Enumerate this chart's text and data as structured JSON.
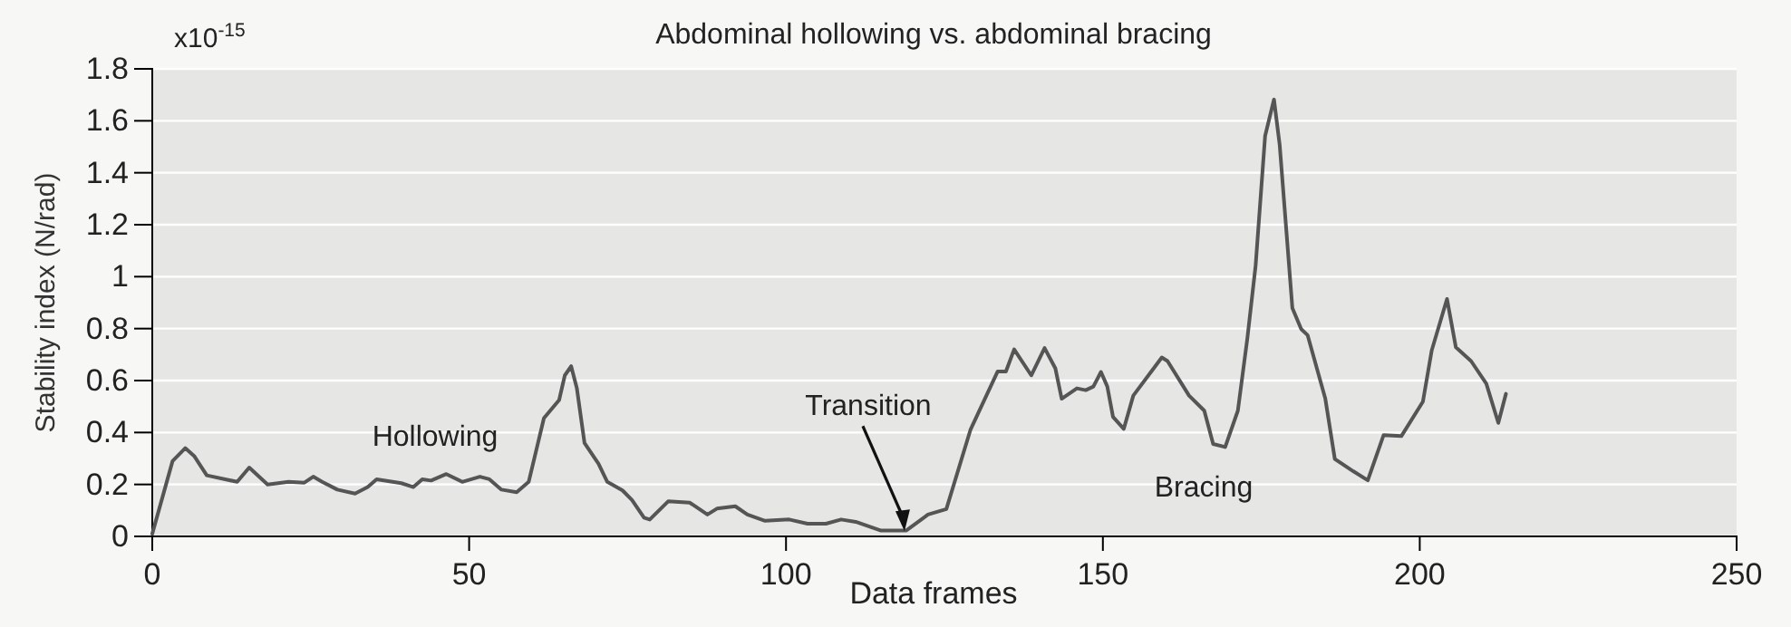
{
  "chart_data": {
    "type": "line",
    "title": "Abdominal hollowing vs. abdominal bracing",
    "xlabel": "Data frames",
    "ylabel": "Stability index (N/rad)",
    "xlim": [
      0,
      250
    ],
    "xticks": [
      0,
      50,
      100,
      150,
      200,
      250
    ],
    "ylim": [
      0,
      1.8
    ],
    "yticks": [
      0,
      0.2,
      0.4,
      0.6,
      0.8,
      1,
      1.2,
      1.4,
      1.6,
      1.8
    ],
    "grid": "y",
    "annotations": [
      "x10$^{-15}$",
      "Hollowing",
      {
        "text": "Transition",
        "x": 118.7,
        "y": 0.02
      },
      "Bracing"
    ],
    "series": [
      {
        "color": "#555555",
        "x": [
          0,
          3.2,
          5.2,
          6.6,
          8.6,
          13.4,
          15.3,
          18.2,
          21.5,
          24,
          25.4,
          26.8,
          29.2,
          32,
          34,
          35.4,
          39.3,
          41.2,
          42.6,
          44,
          46.4,
          48.9,
          51.7,
          53.2,
          55.1,
          57.5,
          59.4,
          61.8,
          64.2,
          65.1,
          66.1,
          67,
          68.2,
          70.4,
          71.8,
          74.2,
          75.7,
          77.6,
          78.5,
          81.4,
          84.8,
          87.6,
          89.1,
          92,
          93.9,
          96.7,
          100.5,
          103.4,
          106.3,
          108.7,
          111,
          114.9,
          119,
          122.4,
          125.3,
          129.1,
          133.4,
          134.7,
          136,
          138.7,
          140.8,
          142.5,
          143.5,
          145.9,
          147.3,
          148.5,
          149.7,
          150.7,
          151.6,
          153.3,
          154.8,
          159.3,
          160.2,
          163.6,
          166,
          167.4,
          169.3,
          171.3,
          172.8,
          174.1,
          175.6,
          177,
          177.9,
          179.9,
          181.3,
          182.3,
          185.1,
          186.6,
          189.5,
          191.8,
          194.3,
          197.1,
          200.5,
          201.9,
          204.3,
          205.7,
          208.1,
          210.5,
          212.4,
          213.6
        ],
        "values": [
          0.01,
          0.29,
          0.34,
          0.31,
          0.235,
          0.21,
          0.265,
          0.2,
          0.21,
          0.207,
          0.23,
          0.21,
          0.18,
          0.165,
          0.19,
          0.22,
          0.205,
          0.19,
          0.22,
          0.215,
          0.24,
          0.21,
          0.23,
          0.22,
          0.18,
          0.17,
          0.21,
          0.455,
          0.525,
          0.62,
          0.655,
          0.57,
          0.36,
          0.28,
          0.21,
          0.177,
          0.14,
          0.072,
          0.065,
          0.135,
          0.13,
          0.084,
          0.107,
          0.116,
          0.084,
          0.06,
          0.065,
          0.049,
          0.049,
          0.065,
          0.056,
          0.023,
          0.023,
          0.084,
          0.105,
          0.41,
          0.635,
          0.635,
          0.72,
          0.62,
          0.725,
          0.647,
          0.53,
          0.57,
          0.563,
          0.577,
          0.633,
          0.577,
          0.46,
          0.414,
          0.542,
          0.689,
          0.675,
          0.542,
          0.484,
          0.356,
          0.344,
          0.484,
          0.763,
          1.042,
          1.542,
          1.682,
          1.507,
          0.879,
          0.798,
          0.775,
          0.53,
          0.298,
          0.251,
          0.216,
          0.39,
          0.386,
          0.519,
          0.717,
          0.914,
          0.728,
          0.675,
          0.588,
          0.437,
          0.549
        ]
      }
    ]
  }
}
